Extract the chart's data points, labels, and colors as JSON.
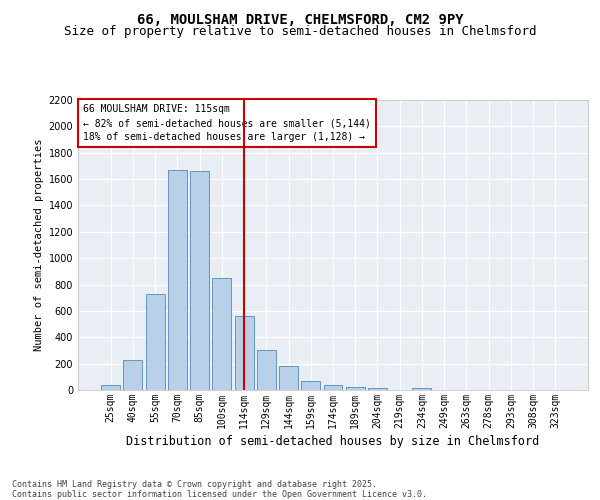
{
  "title": "66, MOULSHAM DRIVE, CHELMSFORD, CM2 9PY",
  "subtitle": "Size of property relative to semi-detached houses in Chelmsford",
  "xlabel": "Distribution of semi-detached houses by size in Chelmsford",
  "ylabel": "Number of semi-detached properties",
  "categories": [
    "25sqm",
    "40sqm",
    "55sqm",
    "70sqm",
    "85sqm",
    "100sqm",
    "114sqm",
    "129sqm",
    "144sqm",
    "159sqm",
    "174sqm",
    "189sqm",
    "204sqm",
    "219sqm",
    "234sqm",
    "249sqm",
    "263sqm",
    "278sqm",
    "293sqm",
    "308sqm",
    "323sqm"
  ],
  "values": [
    40,
    225,
    730,
    1670,
    1660,
    850,
    565,
    300,
    185,
    65,
    35,
    20,
    15,
    0,
    15,
    0,
    0,
    0,
    0,
    0,
    0
  ],
  "bar_color": "#b8d0e8",
  "bar_edge_color": "#5588bb",
  "vline_index": 6,
  "vline_color": "#cc0000",
  "annotation_title": "66 MOULSHAM DRIVE: 115sqm",
  "annotation_line1": "← 82% of semi-detached houses are smaller (5,144)",
  "annotation_line2": "18% of semi-detached houses are larger (1,128) →",
  "annotation_box_edgecolor": "#cc0000",
  "ylim": [
    0,
    2200
  ],
  "yticks": [
    0,
    200,
    400,
    600,
    800,
    1000,
    1200,
    1400,
    1600,
    1800,
    2000,
    2200
  ],
  "background_color": "#e8eef4",
  "grid_color": "#ffffff",
  "footer_line1": "Contains HM Land Registry data © Crown copyright and database right 2025.",
  "footer_line2": "Contains public sector information licensed under the Open Government Licence v3.0.",
  "title_fontsize": 10,
  "subtitle_fontsize": 9,
  "ylabel_fontsize": 7.5,
  "xlabel_fontsize": 8.5,
  "tick_fontsize": 7,
  "footer_fontsize": 6,
  "annot_fontsize": 7
}
